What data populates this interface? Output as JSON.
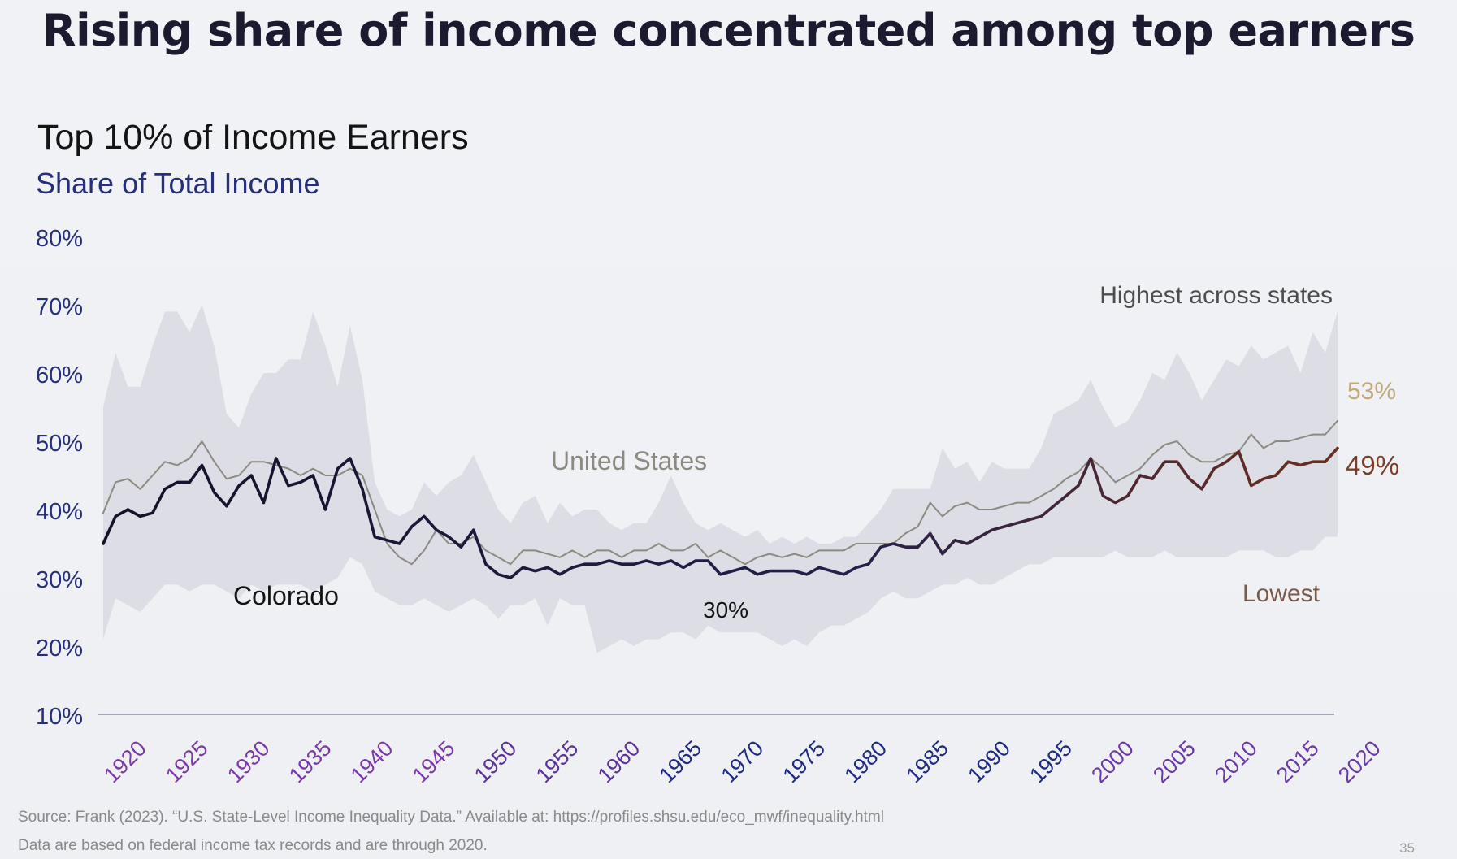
{
  "page": {
    "title": "Rising share of income concentrated among top earners",
    "source": "Source: Frank (2023). “U.S. State-Level Income Inequality Data.” Available at: https://profiles.shsu.edu/eco_mwf/inequality.html",
    "note": "Data are based on federal income tax records and are through 2020.",
    "page_number": "35"
  },
  "chart_data": {
    "type": "line",
    "title": "Top 10% of Income Earners",
    "ylabel": "Share of Total Income",
    "xlabel": "",
    "ylim": [
      10,
      80
    ],
    "xlim": [
      1920,
      2020
    ],
    "y_ticks": [
      {
        "value": 10,
        "label": "10%"
      },
      {
        "value": 20,
        "label": "20%"
      },
      {
        "value": 30,
        "label": "30%"
      },
      {
        "value": 40,
        "label": "40%"
      },
      {
        "value": 50,
        "label": "50%"
      },
      {
        "value": 60,
        "label": "60%"
      },
      {
        "value": 70,
        "label": "70%"
      },
      {
        "value": 80,
        "label": "80%"
      }
    ],
    "x_ticks": [
      "1920",
      "1925",
      "1930",
      "1935",
      "1940",
      "1945",
      "1950",
      "1955",
      "1960",
      "1965",
      "1970",
      "1975",
      "1980",
      "1985",
      "1990",
      "1995",
      "2000",
      "2005",
      "2010",
      "2015",
      "2020"
    ],
    "years": [
      1920,
      1921,
      1922,
      1923,
      1924,
      1925,
      1926,
      1927,
      1928,
      1929,
      1930,
      1931,
      1932,
      1933,
      1934,
      1935,
      1936,
      1937,
      1938,
      1939,
      1940,
      1941,
      1942,
      1943,
      1944,
      1945,
      1946,
      1947,
      1948,
      1949,
      1950,
      1951,
      1952,
      1953,
      1954,
      1955,
      1956,
      1957,
      1958,
      1959,
      1960,
      1961,
      1962,
      1963,
      1964,
      1965,
      1966,
      1967,
      1968,
      1969,
      1970,
      1971,
      1972,
      1973,
      1974,
      1975,
      1976,
      1977,
      1978,
      1979,
      1980,
      1981,
      1982,
      1983,
      1984,
      1985,
      1986,
      1987,
      1988,
      1989,
      1990,
      1991,
      1992,
      1993,
      1994,
      1995,
      1996,
      1997,
      1998,
      1999,
      2000,
      2001,
      2002,
      2003,
      2004,
      2005,
      2006,
      2007,
      2008,
      2009,
      2010,
      2011,
      2012,
      2013,
      2014,
      2015,
      2016,
      2017,
      2018,
      2019,
      2020
    ],
    "series": [
      {
        "name": "Highest across states",
        "role": "band-upper",
        "color": "#d9dae2",
        "values": [
          55,
          63,
          58,
          58,
          64,
          69,
          69,
          66,
          70,
          64,
          54,
          52,
          57,
          60,
          60,
          62,
          62,
          69,
          64,
          58,
          67,
          59,
          44,
          40,
          39,
          40,
          44,
          42,
          44,
          45,
          48,
          44,
          40,
          38,
          41,
          42,
          38,
          41,
          39,
          40,
          40,
          38,
          37,
          38,
          38,
          41,
          45,
          41,
          38,
          37,
          38,
          37,
          36,
          37,
          35,
          36,
          35,
          36,
          35,
          35,
          36,
          36,
          38,
          40,
          43,
          43,
          43,
          43,
          49,
          46,
          47,
          44,
          47,
          46,
          46,
          46,
          49,
          54,
          55,
          56,
          59,
          55,
          52,
          53,
          56,
          60,
          59,
          63,
          60,
          56,
          59,
          62,
          61,
          64,
          62,
          63,
          64,
          60,
          66,
          63,
          69
        ]
      },
      {
        "name": "Lowest",
        "role": "band-lower",
        "color": "#d9dae2",
        "values": [
          21,
          27,
          26,
          25,
          27,
          29,
          29,
          28,
          29,
          29,
          28,
          27,
          29,
          28,
          29,
          29,
          29,
          28,
          29,
          30,
          33,
          32,
          28,
          27,
          26,
          26,
          27,
          26,
          25,
          26,
          27,
          26,
          24,
          26,
          26,
          27,
          23,
          27,
          26,
          26,
          19,
          20,
          21,
          20,
          21,
          21,
          22,
          22,
          21,
          23,
          22,
          22,
          22,
          22,
          21,
          20,
          21,
          20,
          22,
          23,
          23,
          24,
          25,
          27,
          28,
          27,
          27,
          28,
          29,
          29,
          30,
          29,
          29,
          30,
          31,
          32,
          32,
          33,
          33,
          33,
          33,
          33,
          34,
          33,
          33,
          33,
          34,
          33,
          33,
          33,
          33,
          33,
          34,
          34,
          34,
          33,
          33,
          34,
          34,
          36,
          36
        ]
      },
      {
        "name": "United States",
        "role": "line",
        "color": "#8d8a82",
        "values": [
          39.5,
          44,
          44.5,
          43,
          45,
          47,
          46.5,
          47.5,
          50,
          47,
          44.5,
          45,
          47,
          47,
          46.5,
          46,
          45,
          46,
          45,
          45,
          46,
          45,
          40,
          35,
          33,
          32,
          34,
          37,
          35,
          35,
          36,
          34,
          33,
          32,
          34,
          34,
          33.5,
          33,
          34,
          33,
          34,
          34,
          33,
          34,
          34,
          35,
          34,
          34,
          35,
          33,
          34,
          33,
          32,
          33,
          33.5,
          33,
          33.5,
          33,
          34,
          34,
          34,
          35,
          35,
          35,
          35,
          36.5,
          37.5,
          41,
          39,
          40.5,
          41,
          40,
          40,
          40.5,
          41,
          41,
          42,
          43,
          44.5,
          45.5,
          47.5,
          46,
          44,
          45,
          46,
          48,
          49.5,
          50,
          48,
          47,
          47,
          48,
          48.5,
          51,
          49,
          50,
          50,
          50.5,
          51,
          51,
          53
        ]
      },
      {
        "name": "Colorado",
        "role": "line",
        "color": "#15142a",
        "values": [
          35,
          39,
          40,
          39,
          39.5,
          43,
          44,
          44,
          46.5,
          42.5,
          40.5,
          43.5,
          45,
          41,
          47.5,
          43.5,
          44,
          45,
          40,
          46,
          47.5,
          43,
          36,
          35.5,
          35,
          37.5,
          39,
          37,
          36,
          34.5,
          37,
          32,
          30.5,
          30,
          31.5,
          31,
          31.5,
          30.5,
          31.5,
          32,
          32,
          32.5,
          32,
          32,
          32.5,
          32,
          32.5,
          31.5,
          32.5,
          32.5,
          30.5,
          31,
          31.5,
          30.5,
          31,
          31,
          31,
          30.5,
          31.5,
          31,
          30.5,
          31.5,
          32,
          34.5,
          35,
          34.5,
          34.5,
          36.5,
          33.5,
          35.5,
          35,
          36,
          37,
          37.5,
          38,
          38.5,
          39,
          40.5,
          42,
          43.5,
          47.5,
          42,
          41,
          42,
          45,
          44.5,
          47,
          47,
          44.5,
          43,
          46,
          47,
          48.5,
          43.5,
          44.5,
          45,
          47,
          46.5,
          47,
          47,
          49
        ]
      }
    ],
    "annotations": [
      {
        "id": "highest",
        "text": "Highest across states",
        "color": "#4d4d4d"
      },
      {
        "id": "lowest",
        "text": "Lowest",
        "color": "#7a5a48"
      },
      {
        "id": "us",
        "text": "United States",
        "color": "#8d8a82"
      },
      {
        "id": "co",
        "text": "Colorado",
        "color": "#141414"
      },
      {
        "id": "min",
        "text": "30%",
        "color": "#141414"
      },
      {
        "id": "us_end",
        "text": "53%",
        "color": "#c4a87a"
      },
      {
        "id": "co_end",
        "text": "49%",
        "color": "#7a3e2a"
      }
    ],
    "grid": false,
    "legend": "none"
  }
}
